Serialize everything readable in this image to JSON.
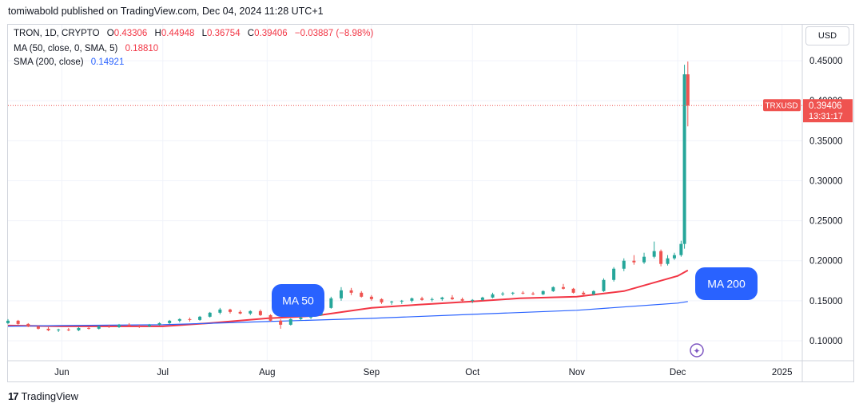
{
  "header": {
    "published": "tomiwabold published on TradingView.com, Dec 04, 2024 11:28 UTC+1"
  },
  "legend": {
    "symbol": "TRON, 1D, CRYPTO",
    "o_label": "O",
    "o": "0.43306",
    "h_label": "H",
    "h": "0.44948",
    "l_label": "L",
    "l": "0.36754",
    "c_label": "C",
    "c": "0.39406",
    "change": "−0.03887 (−8.98%)",
    "ma_label": "MA (50, close, 0, SMA, 5)",
    "ma_value": "0.18810",
    "sma_label": "SMA (200, close)",
    "sma_value": "0.14921"
  },
  "toolbar": {
    "currency": "USD"
  },
  "footer": {
    "brand_mark": "17",
    "brand": "TradingView"
  },
  "colors": {
    "up": "#26a69a",
    "down": "#ef5350",
    "ma50": "#f23645",
    "sma200": "#2962ff",
    "callout": "#2962ff",
    "grid": "#f0f3fa"
  },
  "chart_data": {
    "type": "candlestick",
    "y_ticks": [
      "0.45000",
      "0.40000",
      "0.35000",
      "0.30000",
      "0.25000",
      "0.20000",
      "0.15000",
      "0.10000"
    ],
    "y_tick_values": [
      0.45,
      0.4,
      0.35,
      0.3,
      0.25,
      0.2,
      0.15,
      0.1
    ],
    "ylim": [
      0.075,
      0.495
    ],
    "x_ticks": [
      "Jun",
      "Jul",
      "Aug",
      "Sep",
      "Oct",
      "Nov",
      "Dec",
      "2025"
    ],
    "x_tick_dates": [
      "2024-06-01",
      "2024-07-01",
      "2024-08-01",
      "2024-09-01",
      "2024-10-01",
      "2024-11-01",
      "2024-12-01",
      "2025-01-01"
    ],
    "xlim": [
      "2024-05-16",
      "2025-01-07"
    ],
    "price_label": {
      "symbol": "TRXUSD",
      "price": "0.39406",
      "countdown": "13:31:17"
    },
    "annotations": [
      {
        "text": "MA 50",
        "date": "2024-08-09",
        "value": 0.147
      },
      {
        "text": "MA 200",
        "date": "2024-12-16",
        "value": 0.17
      }
    ],
    "candles": [
      [
        "2024-05-16",
        0.122,
        0.127,
        0.121,
        0.125
      ],
      [
        "2024-05-19",
        0.125,
        0.126,
        0.12,
        0.121
      ],
      [
        "2024-05-22",
        0.121,
        0.122,
        0.117,
        0.118
      ],
      [
        "2024-05-25",
        0.118,
        0.119,
        0.114,
        0.115
      ],
      [
        "2024-05-28",
        0.115,
        0.117,
        0.112,
        0.113
      ],
      [
        "2024-05-31",
        0.113,
        0.115,
        0.111,
        0.114
      ],
      [
        "2024-06-03",
        0.114,
        0.116,
        0.112,
        0.113
      ],
      [
        "2024-06-06",
        0.113,
        0.117,
        0.112,
        0.116
      ],
      [
        "2024-06-09",
        0.116,
        0.118,
        0.114,
        0.115
      ],
      [
        "2024-06-12",
        0.115,
        0.119,
        0.114,
        0.118
      ],
      [
        "2024-06-15",
        0.118,
        0.12,
        0.116,
        0.117
      ],
      [
        "2024-06-18",
        0.117,
        0.121,
        0.116,
        0.12
      ],
      [
        "2024-06-21",
        0.12,
        0.122,
        0.118,
        0.119
      ],
      [
        "2024-06-24",
        0.119,
        0.12,
        0.116,
        0.118
      ],
      [
        "2024-06-27",
        0.118,
        0.121,
        0.117,
        0.12
      ],
      [
        "2024-06-30",
        0.12,
        0.123,
        0.119,
        0.122
      ],
      [
        "2024-07-03",
        0.122,
        0.126,
        0.121,
        0.125
      ],
      [
        "2024-07-06",
        0.125,
        0.128,
        0.123,
        0.127
      ],
      [
        "2024-07-09",
        0.127,
        0.129,
        0.124,
        0.126
      ],
      [
        "2024-07-12",
        0.126,
        0.131,
        0.125,
        0.13
      ],
      [
        "2024-07-15",
        0.13,
        0.136,
        0.129,
        0.135
      ],
      [
        "2024-07-18",
        0.135,
        0.141,
        0.133,
        0.139
      ],
      [
        "2024-07-21",
        0.139,
        0.14,
        0.134,
        0.136
      ],
      [
        "2024-07-24",
        0.136,
        0.138,
        0.133,
        0.134
      ],
      [
        "2024-07-27",
        0.134,
        0.138,
        0.132,
        0.137
      ],
      [
        "2024-07-30",
        0.137,
        0.139,
        0.131,
        0.132
      ],
      [
        "2024-08-02",
        0.132,
        0.133,
        0.124,
        0.125
      ],
      [
        "2024-08-05",
        0.125,
        0.127,
        0.115,
        0.12
      ],
      [
        "2024-08-08",
        0.12,
        0.128,
        0.119,
        0.127
      ],
      [
        "2024-08-11",
        0.127,
        0.131,
        0.125,
        0.129
      ],
      [
        "2024-08-14",
        0.129,
        0.134,
        0.127,
        0.132
      ],
      [
        "2024-08-17",
        0.132,
        0.142,
        0.131,
        0.141
      ],
      [
        "2024-08-20",
        0.141,
        0.155,
        0.14,
        0.153
      ],
      [
        "2024-08-23",
        0.153,
        0.167,
        0.15,
        0.163
      ],
      [
        "2024-08-26",
        0.163,
        0.166,
        0.157,
        0.16
      ],
      [
        "2024-08-29",
        0.16,
        0.162,
        0.154,
        0.155
      ],
      [
        "2024-09-01",
        0.155,
        0.157,
        0.15,
        0.152
      ],
      [
        "2024-09-04",
        0.152,
        0.153,
        0.146,
        0.148
      ],
      [
        "2024-09-07",
        0.148,
        0.15,
        0.145,
        0.149
      ],
      [
        "2024-09-10",
        0.149,
        0.151,
        0.146,
        0.15
      ],
      [
        "2024-09-13",
        0.15,
        0.154,
        0.148,
        0.153
      ],
      [
        "2024-09-16",
        0.153,
        0.155,
        0.15,
        0.151
      ],
      [
        "2024-09-19",
        0.151,
        0.154,
        0.149,
        0.152
      ],
      [
        "2024-09-22",
        0.152,
        0.155,
        0.15,
        0.154
      ],
      [
        "2024-09-25",
        0.154,
        0.157,
        0.151,
        0.152
      ],
      [
        "2024-09-28",
        0.152,
        0.154,
        0.149,
        0.15
      ],
      [
        "2024-10-01",
        0.15,
        0.152,
        0.147,
        0.151
      ],
      [
        "2024-10-04",
        0.151,
        0.155,
        0.15,
        0.154
      ],
      [
        "2024-10-07",
        0.154,
        0.16,
        0.153,
        0.158
      ],
      [
        "2024-10-10",
        0.158,
        0.161,
        0.156,
        0.159
      ],
      [
        "2024-10-13",
        0.159,
        0.161,
        0.157,
        0.16
      ],
      [
        "2024-10-16",
        0.16,
        0.162,
        0.158,
        0.159
      ],
      [
        "2024-10-19",
        0.159,
        0.161,
        0.157,
        0.158
      ],
      [
        "2024-10-22",
        0.158,
        0.163,
        0.157,
        0.162
      ],
      [
        "2024-10-25",
        0.162,
        0.168,
        0.161,
        0.167
      ],
      [
        "2024-10-28",
        0.167,
        0.171,
        0.164,
        0.165
      ],
      [
        "2024-10-31",
        0.165,
        0.166,
        0.159,
        0.16
      ],
      [
        "2024-11-03",
        0.16,
        0.162,
        0.157,
        0.158
      ],
      [
        "2024-11-06",
        0.158,
        0.163,
        0.157,
        0.162
      ],
      [
        "2024-11-09",
        0.162,
        0.178,
        0.161,
        0.176
      ],
      [
        "2024-11-12",
        0.176,
        0.192,
        0.174,
        0.19
      ],
      [
        "2024-11-15",
        0.19,
        0.203,
        0.187,
        0.2
      ],
      [
        "2024-11-18",
        0.2,
        0.207,
        0.195,
        0.198
      ],
      [
        "2024-11-21",
        0.198,
        0.21,
        0.196,
        0.205
      ],
      [
        "2024-11-24",
        0.205,
        0.224,
        0.203,
        0.212
      ],
      [
        "2024-11-26",
        0.212,
        0.214,
        0.193,
        0.196
      ],
      [
        "2024-11-28",
        0.196,
        0.207,
        0.194,
        0.203
      ],
      [
        "2024-11-30",
        0.203,
        0.21,
        0.201,
        0.207
      ],
      [
        "2024-12-02",
        0.207,
        0.225,
        0.205,
        0.221
      ],
      [
        "2024-12-03",
        0.221,
        0.445,
        0.215,
        0.433
      ],
      [
        "2024-12-04",
        0.433,
        0.449,
        0.368,
        0.394
      ]
    ],
    "series": [
      {
        "values": [
          [
            "2024-05-16",
            0.119
          ],
          [
            "2024-06-01",
            0.118
          ],
          [
            "2024-06-15",
            0.118
          ],
          [
            "2024-07-01",
            0.118
          ],
          [
            "2024-07-15",
            0.122
          ],
          [
            "2024-08-01",
            0.128
          ],
          [
            "2024-08-15",
            0.131
          ],
          [
            "2024-09-01",
            0.141
          ],
          [
            "2024-09-15",
            0.145
          ],
          [
            "2024-10-01",
            0.149
          ],
          [
            "2024-10-15",
            0.153
          ],
          [
            "2024-11-01",
            0.155
          ],
          [
            "2024-11-15",
            0.162
          ],
          [
            "2024-12-01",
            0.181
          ],
          [
            "2024-12-04",
            0.188
          ]
        ]
      },
      {
        "values": [
          [
            "2024-05-16",
            0.118
          ],
          [
            "2024-06-01",
            0.119
          ],
          [
            "2024-07-01",
            0.12
          ],
          [
            "2024-08-01",
            0.124
          ],
          [
            "2024-09-01",
            0.128
          ],
          [
            "2024-10-01",
            0.133
          ],
          [
            "2024-11-01",
            0.138
          ],
          [
            "2024-12-01",
            0.147
          ],
          [
            "2024-12-04",
            0.149
          ]
        ]
      }
    ]
  }
}
